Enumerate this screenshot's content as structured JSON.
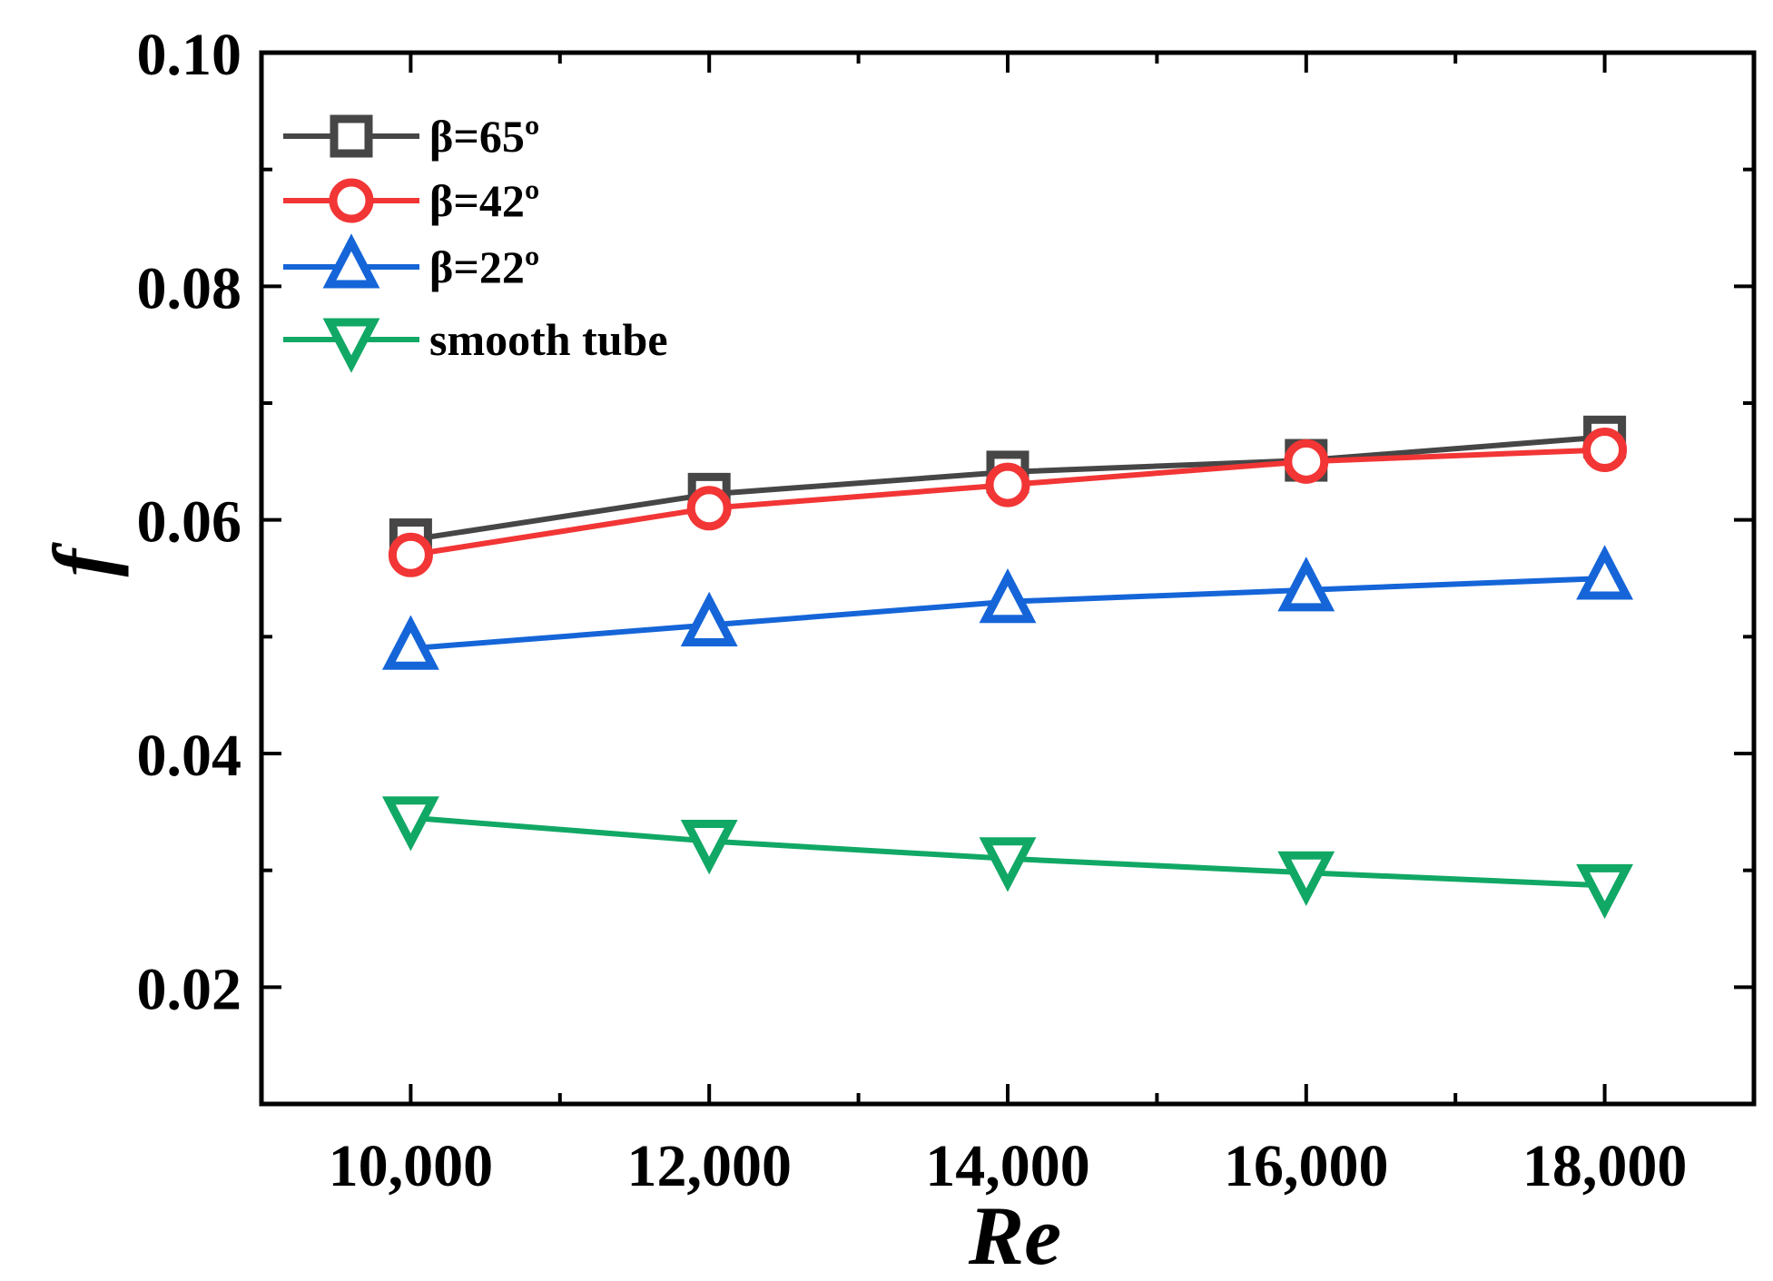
{
  "chart_data": {
    "type": "line",
    "title": "",
    "xlabel": "Re",
    "ylabel": "f",
    "x": [
      10000,
      12000,
      14000,
      16000,
      18000
    ],
    "xlim": [
      9000,
      19000
    ],
    "ylim": [
      0.01,
      0.1
    ],
    "x_ticks": [
      10000,
      12000,
      14000,
      16000,
      18000
    ],
    "x_tick_labels": [
      "10,000",
      "12,000",
      "14,000",
      "16,000",
      "18,000"
    ],
    "x_minor_ticks": [
      11000,
      13000,
      15000,
      17000
    ],
    "y_ticks": [
      0.02,
      0.04,
      0.06,
      0.08,
      0.1
    ],
    "y_tick_labels": [
      "0.02",
      "0.04",
      "0.06",
      "0.08",
      "0.10"
    ],
    "y_minor_ticks": [
      0.03,
      0.05,
      0.07,
      0.09
    ],
    "grid": false,
    "legend_position": "top-left",
    "series": [
      {
        "name": "β=65º",
        "color": "#464646",
        "marker": "square",
        "values": [
          0.0583,
          0.0622,
          0.0641,
          0.0651,
          0.0671
        ]
      },
      {
        "name": "β=42º",
        "color": "#f23535",
        "marker": "circle",
        "values": [
          0.057,
          0.061,
          0.063,
          0.065,
          0.066
        ]
      },
      {
        "name": "β=22º",
        "color": "#1565d8",
        "marker": "triangle-up",
        "values": [
          0.049,
          0.051,
          0.053,
          0.054,
          0.055
        ]
      },
      {
        "name": "smooth tube",
        "color": "#11a865",
        "marker": "triangle-down",
        "values": [
          0.0345,
          0.0325,
          0.031,
          0.0298,
          0.0287
        ]
      }
    ]
  }
}
